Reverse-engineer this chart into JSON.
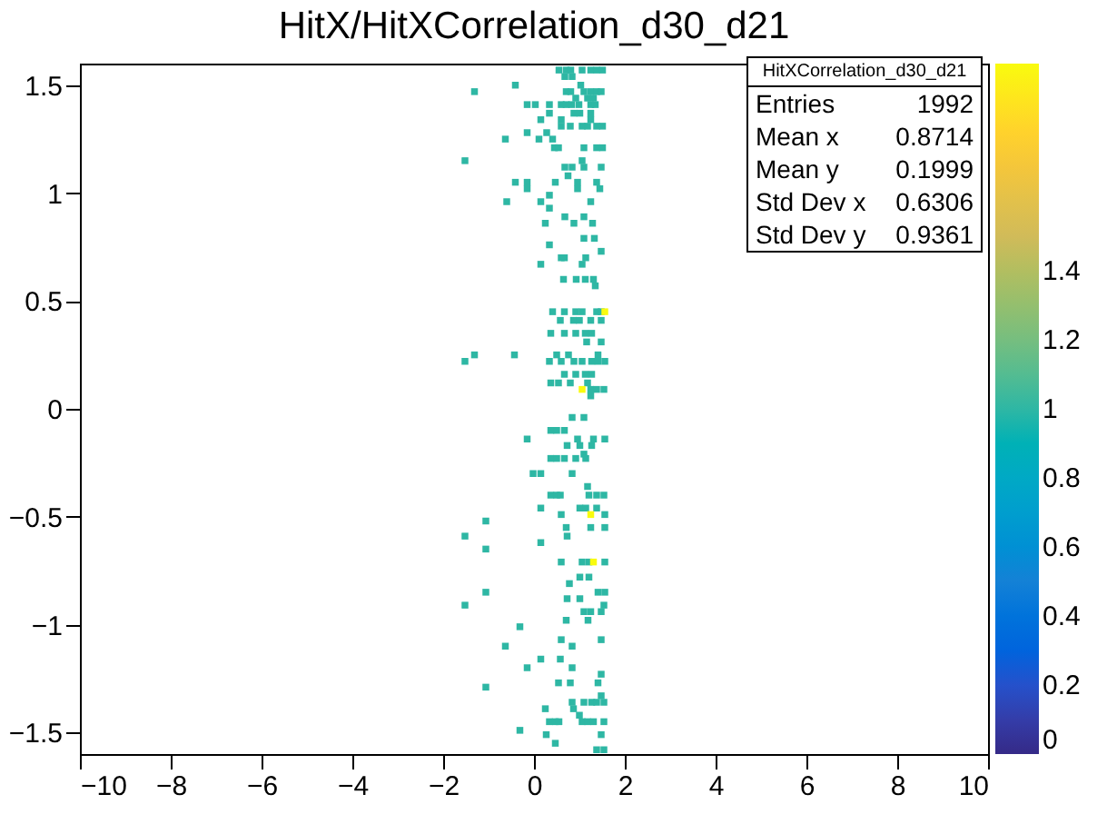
{
  "chart_data": {
    "type": "scatter",
    "title": "HitX/HitXCorrelation_d30_d21",
    "x": [
      0.55,
      0.71,
      0.81,
      1.06,
      1.25,
      1.38,
      1.51,
      0.68,
      0.84,
      -0.41,
      1.03,
      -1.31,
      0.71,
      0.81,
      1.1,
      1.25,
      1.38,
      1.48,
      0.92,
      1.18,
      1.31,
      -0.15,
      0.03,
      0.34,
      0.6,
      0.71,
      0.83,
      0.99,
      1.25,
      1.35,
      0.34,
      0.88,
      1.01,
      1.25,
      0.15,
      0.6,
      1.25,
      0.6,
      0.8,
      1.06,
      1.18,
      1.38,
      1.51,
      -0.15,
      0.28,
      -0.63,
      0.11,
      0.41,
      0.45,
      0.54,
      1.1,
      1.38,
      1.51,
      -1.52,
      1.06,
      0.68,
      0.84,
      1.1,
      1.48,
      0.75,
      -0.41,
      -0.15,
      0.47,
      0.96,
      1.38,
      -0.15,
      0.96,
      1.45,
      0.34,
      -0.6,
      0.15,
      1.25,
      0.34,
      0.68,
      1.1,
      0.25,
      0.88,
      1.29,
      1.1,
      1.33,
      0.34,
      1.48,
      0.6,
      0.67,
      1.14,
      0.15,
      1.06,
      0.65,
      0.93,
      1.13,
      1.31,
      1.35,
      0.41,
      0.67,
      0.92,
      1.06,
      1.38,
      1.48,
      1.56,
      0.58,
      0.87,
      1,
      1.25,
      1.48,
      0.37,
      0.67,
      0.92,
      1.13,
      1.27,
      1.16,
      1.48,
      -1.31,
      -0.43,
      0.5,
      0.76,
      1.41,
      -1.52,
      0.34,
      0.6,
      0.88,
      1.06,
      1.27,
      1.41,
      1.56,
      0.67,
      0.92,
      1.13,
      1.27,
      0.37,
      0.54,
      0.8,
      1.18,
      1.06,
      1.25,
      1.38,
      1.54,
      1.25,
      0.84,
      1.1,
      0.37,
      0.5,
      0.67,
      -0.15,
      0.96,
      1.31,
      1.56,
      0.73,
      1.01,
      1.27,
      1.1,
      0.37,
      0.5,
      0.67,
      0.92,
      1.14,
      -0.02,
      0.15,
      0.84,
      1.18,
      0.37,
      0.5,
      0.58,
      1.21,
      1.38,
      1.54,
      0.15,
      1.01,
      1.14,
      1.38,
      0.6,
      1.25,
      1.56,
      -1.06,
      0.71,
      1.25,
      1.56,
      -1.52,
      0.73,
      0.15,
      -1.06,
      0.6,
      1.06,
      1.21,
      1.31,
      1.56,
      1.01,
      1.21,
      0.78,
      -1.06,
      1.41,
      1.56,
      0.73,
      1.01,
      -1.52,
      1.54,
      1.1,
      1.25,
      1.48,
      0.71,
      1.19,
      -0.31,
      0.6,
      1.48,
      -0.63,
      0.84,
      0.15,
      0.58,
      -0.15,
      0.84,
      1.48,
      0.54,
      0.8,
      1.41,
      -1.06,
      1.48,
      0.84,
      1.1,
      1.27,
      1.38,
      1.54,
      0.25,
      0.87,
      1,
      0.34,
      0.47,
      0.55,
      1.06,
      1.18,
      1.31,
      1.54,
      -0.31,
      0.27,
      1.48,
      0.47,
      1.38,
      1.54
    ],
    "values": [
      1.57,
      1.57,
      1.57,
      1.57,
      1.57,
      1.57,
      1.57,
      1.54,
      1.54,
      1.5,
      1.5,
      1.47,
      1.47,
      1.47,
      1.47,
      1.47,
      1.47,
      1.47,
      1.44,
      1.44,
      1.44,
      1.41,
      1.41,
      1.41,
      1.41,
      1.41,
      1.41,
      1.41,
      1.41,
      1.41,
      1.37,
      1.37,
      1.37,
      1.37,
      1.34,
      1.34,
      1.34,
      1.31,
      1.31,
      1.31,
      1.31,
      1.31,
      1.31,
      1.28,
      1.28,
      1.25,
      1.25,
      1.25,
      1.21,
      1.21,
      1.21,
      1.21,
      1.21,
      1.15,
      1.15,
      1.12,
      1.12,
      1.12,
      1.12,
      1.08,
      1.05,
      1.05,
      1.05,
      1.05,
      1.05,
      1.02,
      1.02,
      1.02,
      0.99,
      0.96,
      0.96,
      0.96,
      0.93,
      0.89,
      0.89,
      0.86,
      0.86,
      0.86,
      0.79,
      0.79,
      0.76,
      0.73,
      0.7,
      0.7,
      0.7,
      0.67,
      0.67,
      0.6,
      0.6,
      0.6,
      0.6,
      0.57,
      0.45,
      0.45,
      0.45,
      0.45,
      0.45,
      0.45,
      0.45,
      0.41,
      0.41,
      0.41,
      0.41,
      0.41,
      0.35,
      0.35,
      0.35,
      0.35,
      0.35,
      0.31,
      0.31,
      0.25,
      0.25,
      0.25,
      0.25,
      0.25,
      0.22,
      0.22,
      0.22,
      0.22,
      0.22,
      0.22,
      0.22,
      0.22,
      0.16,
      0.16,
      0.16,
      0.16,
      0.12,
      0.12,
      0.12,
      0.12,
      0.09,
      0.09,
      0.09,
      0.09,
      0.06,
      -0.04,
      -0.04,
      -0.1,
      -0.1,
      -0.1,
      -0.14,
      -0.14,
      -0.14,
      -0.14,
      -0.17,
      -0.17,
      -0.17,
      -0.21,
      -0.23,
      -0.23,
      -0.23,
      -0.23,
      -0.23,
      -0.3,
      -0.3,
      -0.3,
      -0.36,
      -0.4,
      -0.4,
      -0.4,
      -0.4,
      -0.4,
      -0.4,
      -0.46,
      -0.46,
      -0.46,
      -0.46,
      -0.49,
      -0.49,
      -0.49,
      -0.52,
      -0.55,
      -0.55,
      -0.55,
      -0.59,
      -0.59,
      -0.62,
      -0.65,
      -0.71,
      -0.71,
      -0.71,
      -0.71,
      -0.71,
      -0.78,
      -0.78,
      -0.81,
      -0.85,
      -0.85,
      -0.85,
      -0.88,
      -0.88,
      -0.91,
      -0.91,
      -0.94,
      -0.94,
      -0.94,
      -0.98,
      -0.98,
      -1.01,
      -1.07,
      -1.07,
      -1.1,
      -1.1,
      -1.16,
      -1.16,
      -1.2,
      -1.2,
      -1.23,
      -1.27,
      -1.27,
      -1.27,
      -1.29,
      -1.33,
      -1.36,
      -1.36,
      -1.36,
      -1.36,
      -1.36,
      -1.39,
      -1.39,
      -1.42,
      -1.45,
      -1.45,
      -1.45,
      -1.45,
      -1.45,
      -1.45,
      -1.45,
      -1.49,
      -1.51,
      -1.51,
      -1.55,
      -1.58,
      -1.58
    ],
    "cvalues": [
      1,
      1,
      1,
      1,
      1,
      1,
      1,
      1,
      1,
      1,
      1,
      1,
      1,
      1,
      1,
      1,
      1,
      1,
      1,
      1,
      1,
      1,
      1,
      1,
      1,
      1,
      1,
      1,
      1,
      1,
      1,
      1,
      1,
      1,
      1,
      1,
      1,
      1,
      1,
      1,
      1,
      1,
      1,
      1,
      1,
      1,
      1,
      1,
      1,
      1,
      1,
      1,
      1,
      1,
      1,
      1,
      1,
      1,
      1,
      1,
      1,
      1,
      1,
      1,
      1,
      1,
      1,
      1,
      1,
      1,
      1,
      1,
      1,
      1,
      1,
      1,
      1,
      1,
      1,
      1,
      1,
      1,
      1,
      1,
      1,
      1,
      1,
      1,
      1,
      1,
      1,
      1,
      1,
      1,
      1,
      1,
      1,
      1,
      2,
      1,
      1,
      1,
      1,
      1,
      1,
      1,
      1,
      1,
      1,
      1,
      1,
      1,
      1,
      1,
      1,
      1,
      1,
      1,
      1,
      1,
      1,
      1,
      1,
      1,
      1,
      1,
      1,
      1,
      1,
      1,
      1,
      1,
      2,
      1,
      1,
      1,
      1,
      1,
      1,
      1,
      1,
      1,
      1,
      1,
      1,
      1,
      1,
      1,
      1,
      1,
      1,
      1,
      1,
      1,
      1,
      1,
      1,
      1,
      1,
      1,
      1,
      1,
      1,
      1,
      1,
      1,
      1,
      1,
      1,
      1,
      2,
      1,
      1,
      1,
      1,
      1,
      1,
      1,
      1,
      1,
      1,
      1,
      1,
      2,
      1,
      1,
      1,
      1,
      1,
      1,
      1,
      1,
      1,
      1,
      1,
      1,
      1,
      1,
      1,
      1,
      1,
      1,
      1,
      1,
      1,
      1,
      1,
      1,
      1,
      1,
      1,
      1,
      1,
      1,
      1,
      1,
      1,
      1,
      1,
      1,
      1,
      1,
      1,
      1,
      1,
      1,
      1,
      1,
      1,
      1,
      1,
      1,
      1,
      1,
      1,
      1
    ],
    "xlim": [
      -10,
      10
    ],
    "xticks": [
      -10,
      -8,
      -6,
      -4,
      -2,
      0,
      2,
      4,
      6,
      8,
      10
    ],
    "ylim": [
      -1.6,
      1.6
    ],
    "yticks": [
      -1.5,
      -1,
      -0.5,
      0,
      0.5,
      1,
      1.5
    ],
    "clim": [
      0,
      2
    ],
    "cticks": [
      0,
      0.2,
      0.4,
      0.6,
      0.8,
      1,
      1.2,
      1.4
    ],
    "marker": "square",
    "grid": false,
    "annotations": [
      "HitXCorrelation_d30_d21",
      "Entries 1992",
      "Mean x 0.8714",
      "Mean y 0.1999",
      "Std Dev x 0.6306",
      "Std Dev y 0.9361"
    ]
  }
}
